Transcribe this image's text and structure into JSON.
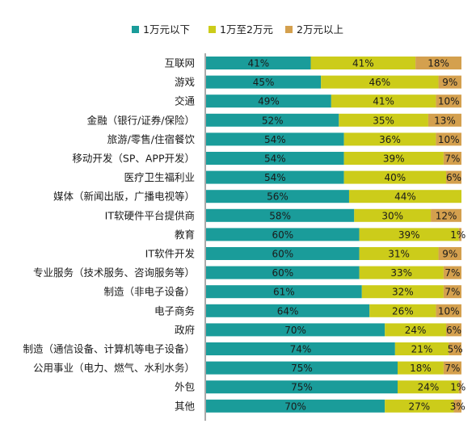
{
  "chart_data": {
    "type": "bar",
    "orientation": "horizontal",
    "stacked": true,
    "percent_stacked": true,
    "legend_position": "top",
    "grid": false,
    "colors": [
      "#1a9c9a",
      "#cccc1a",
      "#d4a04e"
    ],
    "categories": [
      "互联网",
      "游戏",
      "交通",
      "金融（银行/证券/保险）",
      "旅游/零售/住宿餐饮",
      "移动开发（SP、APP开发）",
      "医疗卫生福利业",
      "媒体（新闻出版，广播电视等）",
      "IT软硬件平台提供商",
      "教育",
      "IT软件开发",
      "专业服务（技术服务、咨询服务等）",
      "制造（非电子设备）",
      "电子商务",
      "政府",
      "制造（通信设备、计算机等电子设备）",
      "公用事业（电力、燃气、水利水务）",
      "外包",
      "其他"
    ],
    "series": [
      {
        "name": "1万元以下",
        "values": [
          41,
          45,
          49,
          52,
          54,
          54,
          54,
          56,
          58,
          60,
          60,
          60,
          61,
          64,
          70,
          74,
          75,
          75,
          70
        ]
      },
      {
        "name": "1万至2万元",
        "values": [
          41,
          46,
          41,
          35,
          36,
          39,
          40,
          44,
          30,
          39,
          31,
          33,
          32,
          26,
          24,
          21,
          18,
          24,
          27
        ]
      },
      {
        "name": "2万元以上",
        "values": [
          18,
          9,
          10,
          13,
          10,
          7,
          6,
          0,
          12,
          1,
          9,
          7,
          7,
          10,
          6,
          5,
          7,
          1,
          3
        ]
      }
    ],
    "value_labels": [
      [
        "41%",
        "41%",
        "18%"
      ],
      [
        "45%",
        "46%",
        "9%"
      ],
      [
        "49%",
        "41%",
        "10%"
      ],
      [
        "52%",
        "35%",
        "13%"
      ],
      [
        "54%",
        "36%",
        "10%"
      ],
      [
        "54%",
        "39%",
        "7%"
      ],
      [
        "54%",
        "40%",
        "6%"
      ],
      [
        "56%",
        "44%",
        ""
      ],
      [
        "58%",
        "30%",
        "12%"
      ],
      [
        "60%",
        "39%",
        "1%"
      ],
      [
        "60%",
        "31%",
        "9%"
      ],
      [
        "60%",
        "33%",
        "7%"
      ],
      [
        "61%",
        "32%",
        "7%"
      ],
      [
        "64%",
        "26%",
        "10%"
      ],
      [
        "70%",
        "24%",
        "6%"
      ],
      [
        "74%",
        "21%",
        "5%"
      ],
      [
        "75%",
        "18%",
        "7%"
      ],
      [
        "75%",
        "24%",
        "1%"
      ],
      [
        "70%",
        "27%",
        "3%"
      ]
    ]
  }
}
